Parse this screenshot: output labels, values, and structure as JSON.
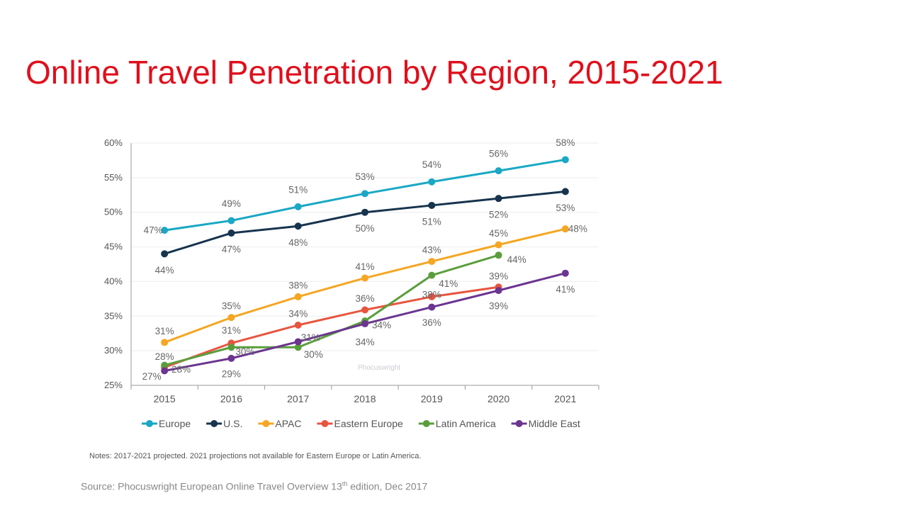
{
  "title": "Online Travel Penetration by Region, 2015-2021",
  "notes": "Notes: 2017-2021 projected. 2021 projections not available for Eastern Europe or Latin America.",
  "source": {
    "prefix": "Source: Phocuswright European Online Travel Overview 13",
    "superscript": "th",
    "suffix": " edition, Dec 2017"
  },
  "watermark": "Phocuswright",
  "chart_data": {
    "type": "line",
    "title": "",
    "xlabel": "",
    "ylabel": "",
    "categories": [
      "2015",
      "2016",
      "2017",
      "2018",
      "2019",
      "2020",
      "2021"
    ],
    "ylim": [
      25,
      60
    ],
    "yticks": [
      25,
      30,
      35,
      40,
      45,
      50,
      55,
      60
    ],
    "ytick_labels": [
      "25%",
      "30%",
      "35%",
      "40%",
      "45%",
      "50%",
      "55%",
      "60%"
    ],
    "grid": true,
    "legend_position": "bottom",
    "series": [
      {
        "name": "Europe",
        "color": "#1aa8c4",
        "values": [
          47.4,
          48.8,
          50.8,
          52.7,
          54.4,
          56.0,
          57.6
        ],
        "labels": [
          "47%",
          "49%",
          "51%",
          "53%",
          "54%",
          "56%",
          "58%"
        ]
      },
      {
        "name": "U.S.",
        "color": "#17344e",
        "values": [
          44.0,
          47.0,
          48.0,
          50.0,
          51.0,
          52.0,
          53.0
        ],
        "labels": [
          "44%",
          "47%",
          "48%",
          "50%",
          "51%",
          "52%",
          "53%"
        ]
      },
      {
        "name": "APAC",
        "color": "#f5a623",
        "values": [
          31.2,
          34.8,
          37.8,
          40.5,
          42.9,
          45.3,
          47.6
        ],
        "labels": [
          "31%",
          "35%",
          "38%",
          "41%",
          "43%",
          "45%",
          "48%"
        ]
      },
      {
        "name": "Eastern Europe",
        "color": "#e8553f",
        "values": [
          27.6,
          31.1,
          33.7,
          35.9,
          37.8,
          39.2,
          null
        ],
        "labels": [
          "28%",
          "31%",
          "34%",
          "36%",
          "38%",
          "39%",
          null
        ]
      },
      {
        "name": "Latin America",
        "color": "#5a9e3c",
        "values": [
          27.9,
          30.5,
          30.5,
          34.3,
          40.9,
          43.8,
          null
        ],
        "labels": [
          "28%",
          "30%",
          "30%",
          "34%",
          "41%",
          "44%",
          null
        ]
      },
      {
        "name": "Middle East",
        "color": "#6b3590",
        "values": [
          27.1,
          28.9,
          31.3,
          33.9,
          36.3,
          38.7,
          41.2
        ],
        "labels": [
          "27%",
          "29%",
          "31%",
          "34%",
          "36%",
          "39%",
          "41%"
        ]
      }
    ]
  }
}
